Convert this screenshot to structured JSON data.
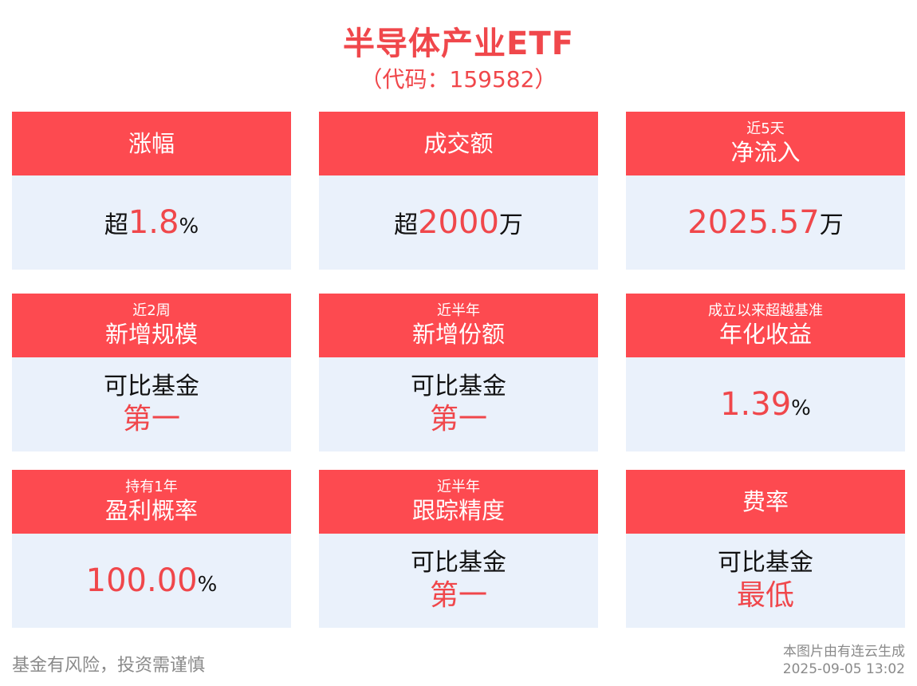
{
  "header": {
    "title": "半导体产业ETF",
    "subtitle": "（代码：159582）"
  },
  "cards": [
    {
      "pre": "",
      "label": "涨幅",
      "value_pre": "超",
      "value_num": "1.8",
      "value_suf": "%"
    },
    {
      "pre": "",
      "label": "成交额",
      "value_pre": "超",
      "value_num": "2000",
      "value_suf": "万"
    },
    {
      "pre": "近5天",
      "label": "净流入",
      "value_pre": "",
      "value_num": "2025.57",
      "value_suf": "万"
    },
    {
      "pre": "近2周",
      "label": "新增规模",
      "rank_pre": "可比基金",
      "rank_main": "第一"
    },
    {
      "pre": "近半年",
      "label": "新增份额",
      "rank_pre": "可比基金",
      "rank_main": "第一"
    },
    {
      "pre": "成立以来超越基准",
      "label": "年化收益",
      "value_pre": "",
      "value_num": "1.39",
      "value_suf": "%"
    },
    {
      "pre": "持有1年",
      "label": "盈利概率",
      "value_pre": "",
      "value_num": "100.00",
      "value_suf": "%"
    },
    {
      "pre": "近半年",
      "label": "跟踪精度",
      "rank_pre": "可比基金",
      "rank_main": "第一"
    },
    {
      "pre": "",
      "label": "费率",
      "rank_pre": "可比基金",
      "rank_main": "最低"
    }
  ],
  "footer": {
    "disclaimer": "基金有风险，投资需谨慎",
    "source": "本图片由有连云生成",
    "timestamp": "2025-09-05 13:02"
  },
  "colors": {
    "accent": "#fd4a50",
    "card_body": "#eaf1fb",
    "highlight_text": "#f0474b"
  }
}
